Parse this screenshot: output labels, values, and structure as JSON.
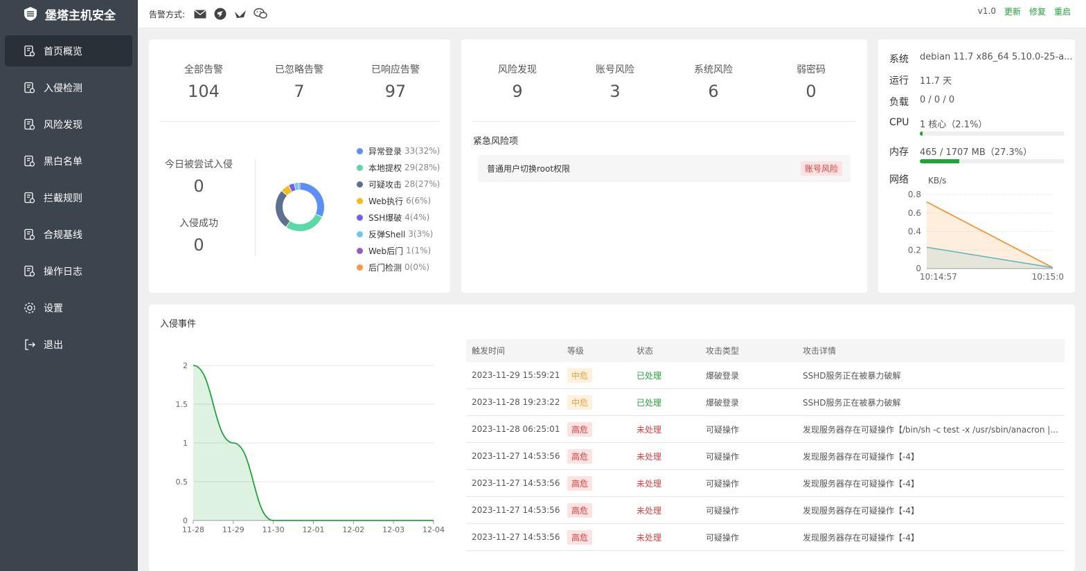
{
  "app": {
    "title": "堡塔主机安全"
  },
  "sidebar": {
    "items": [
      {
        "label": "首页概览",
        "active": true
      },
      {
        "label": "入侵检测"
      },
      {
        "label": "风险发现"
      },
      {
        "label": "黑白名单"
      },
      {
        "label": "拦截规则"
      },
      {
        "label": "合规基线"
      },
      {
        "label": "操作日志"
      },
      {
        "label": "设置"
      },
      {
        "label": "退出"
      }
    ]
  },
  "topbar": {
    "alert_label": "告警方式:",
    "version": "v1.0",
    "update": "更新",
    "repair": "修复",
    "restart": "重启"
  },
  "alerts": {
    "all_label": "全部告警",
    "all_value": "104",
    "ignored_label": "已忽略告警",
    "ignored_value": "7",
    "responded_label": "已响应告警",
    "responded_value": "97",
    "today_label": "今日被尝试入侵",
    "today_value": "0",
    "success_label": "入侵成功",
    "success_value": "0"
  },
  "chart_data": [
    {
      "type": "pie",
      "title": "",
      "categories": [
        "异常登录",
        "本地提权",
        "可疑攻击",
        "Web执行",
        "SSH爆破",
        "反弹Shell",
        "Web后门",
        "后门检测"
      ],
      "values": [
        33,
        29,
        28,
        6,
        4,
        3,
        1,
        0
      ],
      "labels": [
        "33(32%)",
        "29(28%)",
        "28(27%)",
        "6(6%)",
        "4(4%)",
        "3(3%)",
        "1(1%)",
        "0(0%)"
      ],
      "colors": [
        "#5b8ff9",
        "#5ad8a6",
        "#5d7092",
        "#f6bd16",
        "#6f5ef9",
        "#6dc8ec",
        "#945fb9",
        "#ff9845"
      ],
      "legend": "right"
    },
    {
      "type": "area",
      "title": "",
      "ylabel": "KB/s",
      "x": [
        "10:14:57",
        "10:15:0"
      ],
      "series": [
        {
          "values": [
            0.72,
            0.01
          ],
          "color": "#f28c1e"
        },
        {
          "values": [
            0.23,
            0.01
          ],
          "color": "#62b6c2"
        }
      ],
      "ylim": [
        0,
        0.8
      ],
      "yticks": [
        "0",
        "0.2",
        "0.4",
        "0.6",
        "0.8"
      ],
      "grid": true
    },
    {
      "type": "area",
      "title": "",
      "x": [
        "11-28",
        "11-29",
        "11-30",
        "12-01",
        "12-02",
        "12-03",
        "12-04"
      ],
      "series": [
        {
          "values": [
            2,
            1,
            0,
            0,
            0,
            0,
            0
          ],
          "color": "#20a53a"
        }
      ],
      "ylim": [
        0,
        2
      ],
      "yticks": [
        "0",
        "0.5",
        "1",
        "1.5",
        "2"
      ],
      "grid": true
    }
  ],
  "risk": {
    "found_label": "风险发现",
    "found_value": "9",
    "account_label": "账号风险",
    "account_value": "3",
    "system_label": "系统风险",
    "system_value": "6",
    "weakpw_label": "弱密码",
    "weakpw_value": "0",
    "urgent_title": "紧急风险项",
    "urgent_items": [
      {
        "text": "普通用户切换root权限",
        "tag": "账号风险"
      }
    ]
  },
  "system": {
    "os_label": "系统",
    "os_value": "debian 11.7 x86_64 5.10.0-25-a...",
    "uptime_label": "运行",
    "uptime_value": "11.7 天",
    "load_label": "负载",
    "load_value": "0 / 0 / 0",
    "cpu_label": "CPU",
    "cpu_value": "1 核心（2.1%）",
    "cpu_pct": 2.1,
    "mem_label": "内存",
    "mem_value": "465 / 1707 MB（27.3%）",
    "mem_pct": 27.3,
    "net_label": "网络"
  },
  "events": {
    "title": "入侵事件",
    "columns": [
      "触发时间",
      "等级",
      "状态",
      "攻击类型",
      "攻击详情"
    ],
    "rows": [
      [
        "2023-11-29 15:59:21",
        "中危",
        "已处理",
        "爆破登录",
        "SSHD服务正在被暴力破解"
      ],
      [
        "2023-11-28 19:23:22",
        "中危",
        "已处理",
        "爆破登录",
        "SSHD服务正在被暴力破解"
      ],
      [
        "2023-11-28 06:25:01",
        "高危",
        "未处理",
        "可疑操作",
        "发现服务器存在可疑操作【/bin/sh -c test -x /usr/sbin/anacron ||..."
      ],
      [
        "2023-11-27 14:53:56",
        "高危",
        "未处理",
        "可疑操作",
        "发现服务器存在可疑操作【-4】"
      ],
      [
        "2023-11-27 14:53:56",
        "高危",
        "未处理",
        "可疑操作",
        "发现服务器存在可疑操作【-4】"
      ],
      [
        "2023-11-27 14:53:56",
        "高危",
        "未处理",
        "可疑操作",
        "发现服务器存在可疑操作【-4】"
      ],
      [
        "2023-11-27 14:53:56",
        "高危",
        "未处理",
        "可疑操作",
        "发现服务器存在可疑操作【-4】"
      ]
    ]
  }
}
